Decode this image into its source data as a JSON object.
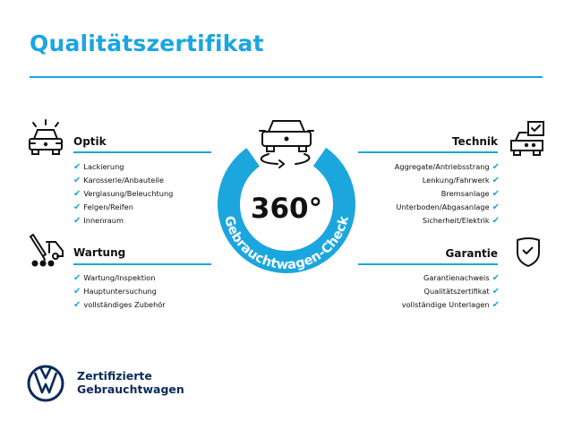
{
  "title": "Qualitätszertifikat",
  "colors": {
    "accent": "#1ba6de",
    "brand_navy": "#0b2a5b",
    "text": "#111111"
  },
  "center": {
    "value": "360°",
    "ring_label": "Gebrauchtwagen-Check",
    "icon": "car-rotate-icon"
  },
  "sections": {
    "optik": {
      "heading": "Optik",
      "icon": "car-lights-icon",
      "items": [
        "Lackierung",
        "Karosserie/Anbauteile",
        "Verglasung/Beleuchtung",
        "Felgen/Reifen",
        "Innenraum"
      ]
    },
    "wartung": {
      "heading": "Wartung",
      "icon": "service-tools-icon",
      "items": [
        "Wartung/Inspektion",
        "Hauptuntersuchung",
        "vollständiges Zubehör"
      ]
    },
    "technik": {
      "heading": "Technik",
      "icon": "car-checkbox-icon",
      "items": [
        "Aggregate/Antriebsstrang",
        "Lenkung/Fahrwerk",
        "Bremsanlage",
        "Unterboden/Abgasanlage",
        "Sicherheit/Elektrik"
      ]
    },
    "garantie": {
      "heading": "Garantie",
      "icon": "shield-check-icon",
      "items": [
        "Garantienachweis",
        "Qualitätszertifikat",
        "vollständige Unterlagen"
      ]
    }
  },
  "check_glyph": "✔",
  "footer": {
    "line1": "Zertifizierte",
    "line2": "Gebrauchtwagen",
    "logo": "VW"
  }
}
